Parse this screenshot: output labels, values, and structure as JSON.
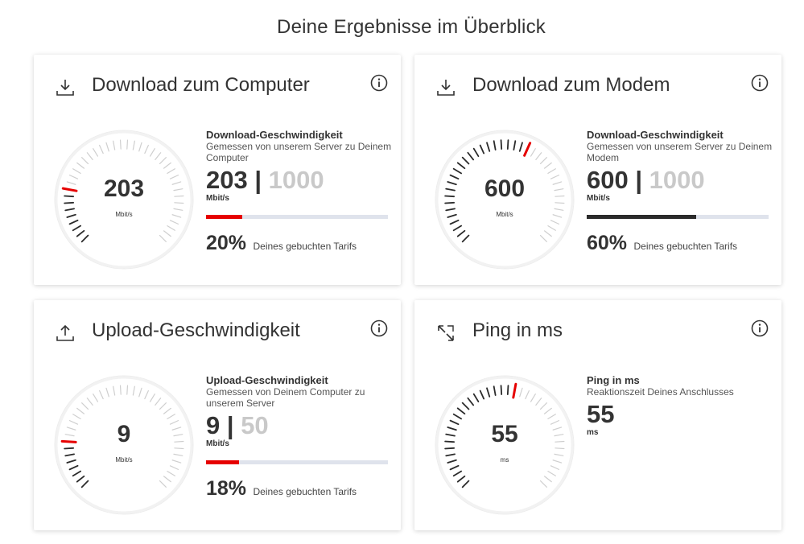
{
  "page": {
    "title": "Deine Ergebnisse im Überblick"
  },
  "colors": {
    "accent": "#e60000",
    "dark": "#2b2b2b",
    "track": "#dfe3ec",
    "muted": "#c9c9c9"
  },
  "cards": [
    {
      "icon": "download-icon",
      "title": "Download zum Computer",
      "gauge_value": "203",
      "gauge_unit": "Mbit/s",
      "gauge_fraction": 0.203,
      "info_title": "Download-Geschwindigkeit",
      "info_sub": "Gemessen von unserem Server zu Deinem Computer",
      "value": "203",
      "separator": "|",
      "max": "1000",
      "unit": "Mbit/s",
      "progress": 0.2,
      "bar_color": "#e60000",
      "percent": "20%",
      "percent_label": "Deines gebuchten Tarifs"
    },
    {
      "icon": "download-icon",
      "title": "Download zum Modem",
      "gauge_value": "600",
      "gauge_unit": "Mbit/s",
      "gauge_fraction": 0.6,
      "info_title": "Download-Geschwindigkeit",
      "info_sub": "Gemessen von unserem Server zu Deinem Modem",
      "value": "600",
      "separator": "|",
      "max": "1000",
      "unit": "Mbit/s",
      "progress": 0.6,
      "bar_color": "#2b2b2b",
      "percent": "60%",
      "percent_label": "Deines gebuchten Tarifs"
    },
    {
      "icon": "upload-icon",
      "title": "Upload-Geschwindigkeit",
      "gauge_value": "9",
      "gauge_unit": "Mbit/s",
      "gauge_fraction": 0.18,
      "info_title": "Upload-Geschwindigkeit",
      "info_sub": "Gemessen von Deinem Computer zu unserem Server",
      "value": "9",
      "separator": "|",
      "max": "50",
      "unit": "Mbit/s",
      "progress": 0.18,
      "bar_color": "#e60000",
      "percent": "18%",
      "percent_label": "Deines gebuchten Tarifs"
    },
    {
      "icon": "ping-icon",
      "title": "Ping in ms",
      "gauge_value": "55",
      "gauge_unit": "ms",
      "gauge_fraction": 0.55,
      "info_title": "Ping in ms",
      "info_sub": "Reaktionszeit Deines Anschlusses",
      "value": "55",
      "unit": "ms"
    }
  ]
}
